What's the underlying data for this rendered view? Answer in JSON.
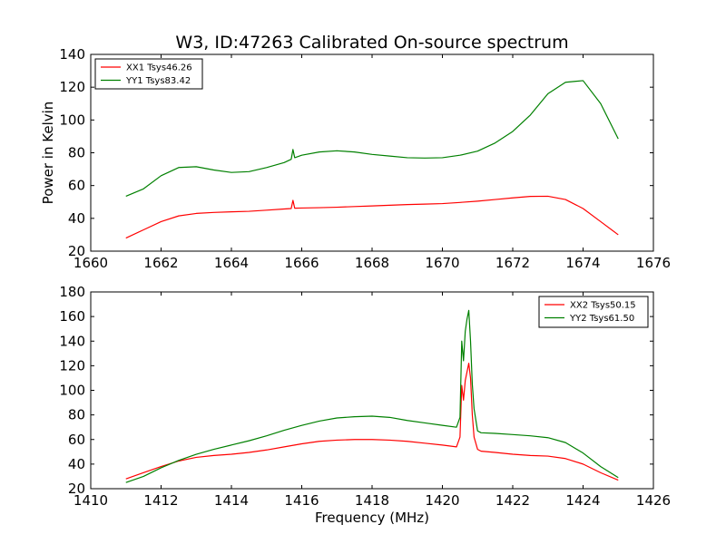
{
  "title": "W3, ID:47263 Calibrated On-source spectrum",
  "ylabel": "Power in Kelvin",
  "xlabel": "Frequency (MHz)",
  "chart_data": [
    {
      "type": "line",
      "xlim": [
        1660,
        1676
      ],
      "ylim": [
        20,
        140
      ],
      "xticks": [
        1660,
        1662,
        1664,
        1666,
        1668,
        1670,
        1672,
        1674,
        1676
      ],
      "yticks": [
        20,
        40,
        60,
        80,
        100,
        120,
        140
      ],
      "legend_position": "top-left",
      "series": [
        {
          "name": "XX1 Tsys46.26",
          "color": "#ff0000",
          "x": [
            1661.0,
            1661.5,
            1662.0,
            1662.5,
            1663.0,
            1663.5,
            1664.0,
            1664.5,
            1665.0,
            1665.5,
            1665.7,
            1665.75,
            1665.8,
            1666.0,
            1666.5,
            1667.0,
            1667.5,
            1668.0,
            1668.5,
            1669.0,
            1669.5,
            1670.0,
            1670.5,
            1671.0,
            1671.5,
            1672.0,
            1672.5,
            1673.0,
            1673.5,
            1674.0,
            1674.5,
            1675.0
          ],
          "y": [
            28,
            33,
            38,
            41.5,
            43,
            43.6,
            44,
            44.3,
            45,
            45.7,
            46,
            51,
            46.2,
            46.3,
            46.5,
            46.8,
            47.2,
            47.6,
            48,
            48.4,
            48.7,
            49,
            49.7,
            50.5,
            51.5,
            52.5,
            53.4,
            53.5,
            51.5,
            46,
            38,
            30
          ]
        },
        {
          "name": "YY1 Tsys83.42",
          "color": "#008000",
          "x": [
            1661.0,
            1661.5,
            1662.0,
            1662.5,
            1663.0,
            1663.5,
            1664.0,
            1664.5,
            1665.0,
            1665.5,
            1665.7,
            1665.75,
            1665.8,
            1666.0,
            1666.5,
            1667.0,
            1667.5,
            1668.0,
            1668.5,
            1669.0,
            1669.5,
            1670.0,
            1670.5,
            1671.0,
            1671.5,
            1672.0,
            1672.5,
            1673.0,
            1673.5,
            1674.0,
            1674.5,
            1675.0
          ],
          "y": [
            53.5,
            58,
            66,
            71,
            71.5,
            69.5,
            68,
            68.5,
            71,
            74,
            76,
            82,
            77,
            78.5,
            80.5,
            81.2,
            80.5,
            79,
            78,
            77,
            76.8,
            77,
            78.5,
            81,
            86,
            93,
            103,
            116,
            123,
            124,
            110,
            88.5
          ]
        }
      ]
    },
    {
      "type": "line",
      "xlim": [
        1410,
        1426
      ],
      "ylim": [
        20,
        180
      ],
      "xticks": [
        1410,
        1412,
        1414,
        1416,
        1418,
        1420,
        1422,
        1424,
        1426
      ],
      "yticks": [
        20,
        40,
        60,
        80,
        100,
        120,
        140,
        160,
        180
      ],
      "legend_position": "top-right",
      "series": [
        {
          "name": "XX2 Tsys50.15",
          "color": "#ff0000",
          "x": [
            1411.0,
            1411.5,
            1412.0,
            1412.5,
            1413.0,
            1413.5,
            1414.0,
            1414.5,
            1415.0,
            1415.5,
            1416.0,
            1416.5,
            1417.0,
            1417.5,
            1418.0,
            1418.5,
            1419.0,
            1419.5,
            1420.0,
            1420.4,
            1420.5,
            1420.55,
            1420.6,
            1420.65,
            1420.7,
            1420.75,
            1420.8,
            1420.85,
            1420.9,
            1421.0,
            1421.1,
            1421.5,
            1422.0,
            1422.5,
            1423.0,
            1423.5,
            1424.0,
            1424.5,
            1425.0
          ],
          "y": [
            28,
            33,
            38,
            42.5,
            45.5,
            47,
            48,
            49.5,
            51.5,
            54,
            56.5,
            58.5,
            59.5,
            60,
            60,
            59.5,
            58.5,
            57,
            55.5,
            54,
            62,
            104,
            92,
            108,
            115,
            122,
            110,
            80,
            62,
            52,
            50.5,
            49.5,
            48,
            47,
            46.5,
            44.5,
            40,
            33,
            27
          ]
        },
        {
          "name": "YY2 Tsys61.50",
          "color": "#008000",
          "x": [
            1411.0,
            1411.5,
            1412.0,
            1412.5,
            1413.0,
            1413.5,
            1414.0,
            1414.5,
            1415.0,
            1415.5,
            1416.0,
            1416.5,
            1417.0,
            1417.5,
            1418.0,
            1418.5,
            1419.0,
            1419.5,
            1420.0,
            1420.4,
            1420.5,
            1420.55,
            1420.6,
            1420.65,
            1420.7,
            1420.75,
            1420.8,
            1420.85,
            1420.9,
            1421.0,
            1421.1,
            1421.5,
            1422.0,
            1422.5,
            1423.0,
            1423.5,
            1424.0,
            1424.5,
            1425.0
          ],
          "y": [
            25,
            30,
            37,
            43,
            48,
            52,
            55.5,
            59,
            63,
            67.5,
            71.5,
            75,
            77.5,
            78.5,
            79,
            78,
            75.5,
            73.5,
            71.5,
            70,
            78,
            140,
            124,
            148,
            158,
            165,
            140,
            105,
            85,
            67,
            65.5,
            65,
            64,
            63,
            61.5,
            57.5,
            49,
            38,
            29
          ]
        }
      ]
    }
  ]
}
